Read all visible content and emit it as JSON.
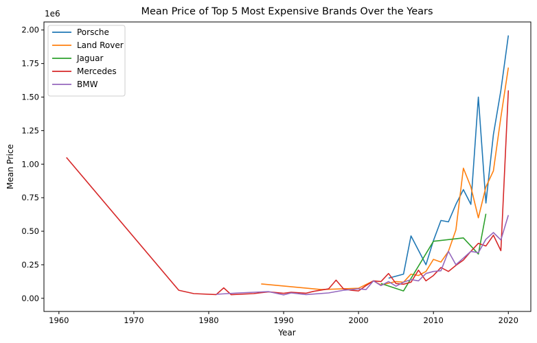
{
  "chart_data": {
    "type": "line",
    "title": "Mean Price of Top 5 Most Expensive Brands Over the Years",
    "xlabel": "Year",
    "ylabel": "Mean Price",
    "y_offset_label": "1e6",
    "xlim": [
      1958,
      2023
    ],
    "ylim": [
      -0.098,
      2.06
    ],
    "x_ticks": [
      1960,
      1970,
      1980,
      1990,
      2000,
      2010,
      2020
    ],
    "x_tick_labels": [
      "1960",
      "1970",
      "1980",
      "1990",
      "2000",
      "2010",
      "2020"
    ],
    "y_ticks": [
      0,
      0.25,
      0.5,
      0.75,
      1.0,
      1.25,
      1.5,
      1.75,
      2.0
    ],
    "y_tick_labels": [
      "0.00",
      "0.25",
      "0.50",
      "0.75",
      "1.00",
      "1.25",
      "1.50",
      "1.75",
      "2.00"
    ],
    "grid": false,
    "legend_position": "top-left",
    "series": [
      {
        "name": "Porsche",
        "color": "#1f77b4",
        "points": [
          [
            2004,
            0.15
          ],
          [
            2006,
            0.18
          ],
          [
            2007,
            0.465
          ],
          [
            2009,
            0.25
          ],
          [
            2010,
            0.43
          ],
          [
            2011,
            0.58
          ],
          [
            2012,
            0.57
          ],
          [
            2013,
            0.7
          ],
          [
            2014,
            0.81
          ],
          [
            2015,
            0.7
          ],
          [
            2016,
            1.5
          ],
          [
            2017,
            0.71
          ],
          [
            2018,
            1.22
          ],
          [
            2019,
            1.55
          ],
          [
            2020,
            1.96
          ]
        ]
      },
      {
        "name": "Land Rover",
        "color": "#ff7f0e",
        "points": [
          [
            1987,
            0.107
          ],
          [
            1995,
            0.065
          ],
          [
            2000,
            0.075
          ],
          [
            2002,
            0.13
          ],
          [
            2003,
            0.1
          ],
          [
            2005,
            0.125
          ],
          [
            2006,
            0.12
          ],
          [
            2007,
            0.18
          ],
          [
            2008,
            0.17
          ],
          [
            2009,
            0.2
          ],
          [
            2010,
            0.29
          ],
          [
            2011,
            0.27
          ],
          [
            2012,
            0.35
          ],
          [
            2013,
            0.51
          ],
          [
            2014,
            0.97
          ],
          [
            2015,
            0.83
          ],
          [
            2016,
            0.6
          ],
          [
            2017,
            0.83
          ],
          [
            2018,
            0.95
          ],
          [
            2019,
            1.35
          ],
          [
            2020,
            1.72
          ]
        ]
      },
      {
        "name": "Jaguar",
        "color": "#2ca02c",
        "points": [
          [
            2003,
            0.11
          ],
          [
            2006,
            0.055
          ],
          [
            2010,
            0.425
          ],
          [
            2014,
            0.45
          ],
          [
            2016,
            0.33
          ],
          [
            2017,
            0.63
          ]
        ]
      },
      {
        "name": "Mercedes",
        "color": "#d62728",
        "points": [
          [
            1961,
            1.05
          ],
          [
            1976,
            0.06
          ],
          [
            1978,
            0.035
          ],
          [
            1981,
            0.028
          ],
          [
            1982,
            0.078
          ],
          [
            1983,
            0.027
          ],
          [
            1986,
            0.035
          ],
          [
            1988,
            0.048
          ],
          [
            1990,
            0.037
          ],
          [
            1991,
            0.045
          ],
          [
            1993,
            0.038
          ],
          [
            1994,
            0.052
          ],
          [
            1996,
            0.07
          ],
          [
            1997,
            0.135
          ],
          [
            1998,
            0.07
          ],
          [
            1999,
            0.06
          ],
          [
            2000,
            0.055
          ],
          [
            2001,
            0.095
          ],
          [
            2002,
            0.13
          ],
          [
            2003,
            0.125
          ],
          [
            2004,
            0.185
          ],
          [
            2005,
            0.11
          ],
          [
            2006,
            0.105
          ],
          [
            2007,
            0.12
          ],
          [
            2008,
            0.21
          ],
          [
            2009,
            0.13
          ],
          [
            2010,
            0.17
          ],
          [
            2011,
            0.23
          ],
          [
            2012,
            0.2
          ],
          [
            2013,
            0.245
          ],
          [
            2014,
            0.285
          ],
          [
            2015,
            0.35
          ],
          [
            2016,
            0.41
          ],
          [
            2017,
            0.39
          ],
          [
            2018,
            0.47
          ],
          [
            2019,
            0.355
          ],
          [
            2020,
            1.55
          ]
        ]
      },
      {
        "name": "BMW",
        "color": "#9467bd",
        "points": [
          [
            1981,
            0.03
          ],
          [
            1984,
            0.04
          ],
          [
            1988,
            0.05
          ],
          [
            1990,
            0.025
          ],
          [
            1991,
            0.04
          ],
          [
            1993,
            0.028
          ],
          [
            1996,
            0.04
          ],
          [
            1998,
            0.06
          ],
          [
            2000,
            0.07
          ],
          [
            2001,
            0.065
          ],
          [
            2002,
            0.13
          ],
          [
            2003,
            0.095
          ],
          [
            2004,
            0.125
          ],
          [
            2005,
            0.09
          ],
          [
            2006,
            0.12
          ],
          [
            2007,
            0.14
          ],
          [
            2008,
            0.13
          ],
          [
            2009,
            0.185
          ],
          [
            2010,
            0.2
          ],
          [
            2011,
            0.205
          ],
          [
            2012,
            0.35
          ],
          [
            2013,
            0.25
          ],
          [
            2014,
            0.3
          ],
          [
            2015,
            0.35
          ],
          [
            2016,
            0.34
          ],
          [
            2017,
            0.44
          ],
          [
            2018,
            0.49
          ],
          [
            2019,
            0.435
          ],
          [
            2020,
            0.62
          ]
        ]
      }
    ]
  }
}
